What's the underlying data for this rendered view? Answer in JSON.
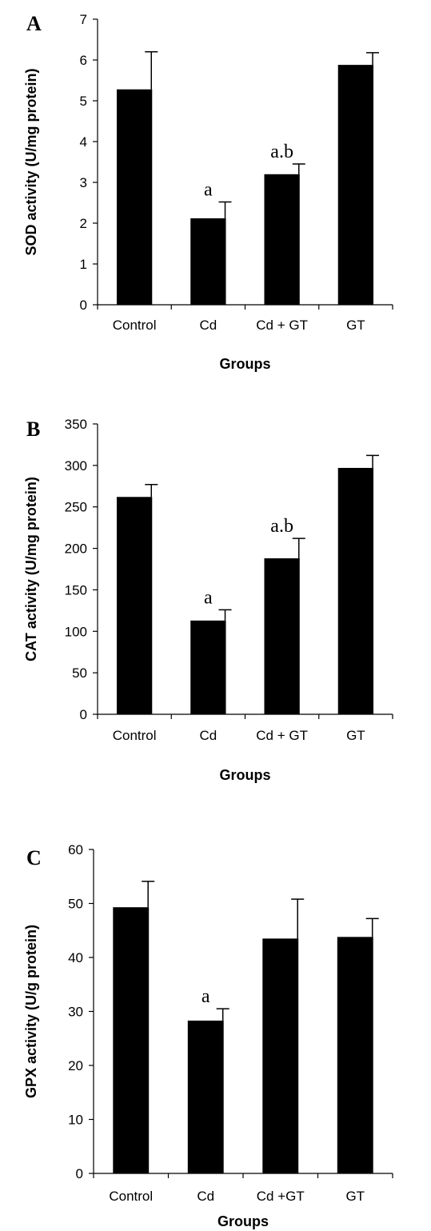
{
  "chart_data": [
    {
      "type": "bar",
      "panel": "A",
      "categories": [
        "Control",
        "Cd",
        "Cd + GT",
        "GT"
      ],
      "values": [
        5.28,
        2.12,
        3.2,
        5.88
      ],
      "errors": [
        0.92,
        0.4,
        0.25,
        0.3
      ],
      "annotations": [
        "",
        "a",
        "a.b",
        ""
      ],
      "ylabel": "SOD activity (U/mg protein)",
      "xlabel": "Groups",
      "ylim": [
        0,
        7
      ],
      "yticks": [
        0,
        1,
        2,
        3,
        4,
        5,
        6,
        7
      ],
      "color": "#000000"
    },
    {
      "type": "bar",
      "panel": "B",
      "categories": [
        "Control",
        "Cd",
        "Cd + GT",
        "GT"
      ],
      "values": [
        262,
        113,
        188,
        297
      ],
      "errors": [
        15,
        13,
        24,
        15
      ],
      "annotations": [
        "",
        "a",
        "a.b",
        ""
      ],
      "ylabel": "CAT activity (U/mg protein)",
      "xlabel": "Groups",
      "ylim": [
        0,
        350
      ],
      "yticks": [
        0,
        50,
        100,
        150,
        200,
        250,
        300,
        350
      ],
      "color": "#000000"
    },
    {
      "type": "bar",
      "panel": "C",
      "categories": [
        "Control",
        "Cd",
        "Cd +GT",
        "GT"
      ],
      "values": [
        49.3,
        28.3,
        43.5,
        43.8
      ],
      "errors": [
        4.8,
        2.2,
        7.3,
        3.4
      ],
      "annotations": [
        "",
        "a",
        "",
        ""
      ],
      "ylabel": "GPX activity (U/g protein)",
      "xlabel": "Groups",
      "ylim": [
        0,
        60
      ],
      "yticks": [
        0,
        10,
        20,
        30,
        40,
        50,
        60
      ],
      "color": "#000000"
    }
  ]
}
